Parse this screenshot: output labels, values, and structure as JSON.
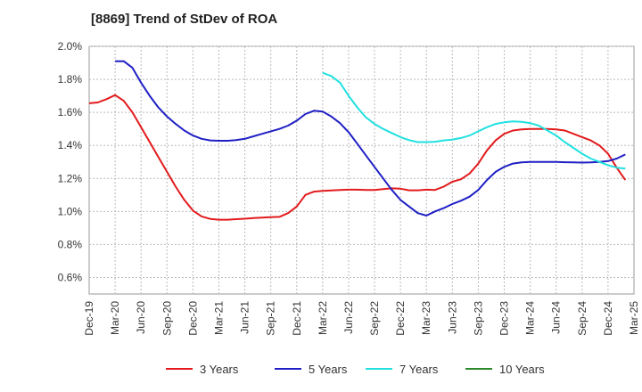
{
  "chart_data": {
    "type": "line",
    "title": "[8869]  Trend of StDev of ROA",
    "xlabel": "",
    "ylabel": "",
    "ylim": [
      0.5,
      2.0
    ],
    "y_ticks": [
      0.6,
      0.8,
      1.0,
      1.2,
      1.4,
      1.6,
      1.8,
      2.0
    ],
    "y_tick_labels": [
      "0.6%",
      "0.8%",
      "1.0%",
      "1.2%",
      "1.4%",
      "1.6%",
      "1.8%",
      "2.0%"
    ],
    "x_tick_labels": [
      "Dec-19",
      "Mar-20",
      "Jun-20",
      "Sep-20",
      "Dec-20",
      "Mar-21",
      "Jun-21",
      "Sep-21",
      "Dec-21",
      "Mar-22",
      "Jun-22",
      "Sep-22",
      "Dec-22",
      "Mar-23",
      "Jun-23",
      "Sep-23",
      "Dec-23",
      "Mar-24",
      "Jun-24",
      "Sep-24",
      "Dec-24",
      "Mar-25"
    ],
    "grid": true,
    "legend_position": "bottom",
    "series": [
      {
        "name": "3 Years",
        "color": "#e31a1c",
        "values": [
          1.655,
          1.66,
          1.68,
          1.705,
          1.67,
          1.6,
          1.51,
          1.42,
          1.33,
          1.24,
          1.15,
          1.07,
          1.005,
          0.97,
          0.955,
          0.95,
          0.95,
          0.953,
          0.956,
          0.96,
          0.963,
          0.965,
          0.967,
          0.99,
          1.03,
          1.1,
          1.12,
          1.125,
          1.127,
          1.13,
          1.132,
          1.132,
          1.13,
          1.13,
          1.135,
          1.14,
          1.138,
          1.128,
          1.128,
          1.132,
          1.13,
          1.15,
          1.18,
          1.195,
          1.23,
          1.29,
          1.37,
          1.43,
          1.47,
          1.49,
          1.497,
          1.5,
          1.5,
          1.5,
          1.497,
          1.49,
          1.47,
          1.45,
          1.43,
          1.4,
          1.35,
          1.265,
          1.19
        ]
      },
      {
        "name": "5 Years",
        "color": "#1f1fc4",
        "values": [
          null,
          null,
          null,
          1.91,
          1.91,
          1.87,
          1.78,
          1.7,
          1.63,
          1.575,
          1.53,
          1.49,
          1.46,
          1.44,
          1.43,
          1.428,
          1.428,
          1.432,
          1.44,
          1.455,
          1.47,
          1.485,
          1.5,
          1.52,
          1.55,
          1.59,
          1.61,
          1.605,
          1.575,
          1.535,
          1.48,
          1.41,
          1.34,
          1.27,
          1.2,
          1.13,
          1.07,
          1.03,
          0.99,
          0.975,
          1.0,
          1.02,
          1.045,
          1.065,
          1.09,
          1.13,
          1.19,
          1.24,
          1.27,
          1.29,
          1.297,
          1.3,
          1.3,
          1.3,
          1.3,
          1.298,
          1.297,
          1.296,
          1.297,
          1.3,
          1.305,
          1.32,
          1.345
        ]
      },
      {
        "name": "7 Years",
        "color": "#22e0e0",
        "values": [
          null,
          null,
          null,
          null,
          null,
          null,
          null,
          null,
          null,
          null,
          null,
          null,
          null,
          null,
          null,
          null,
          null,
          null,
          null,
          null,
          null,
          null,
          null,
          null,
          null,
          null,
          null,
          1.84,
          1.82,
          1.78,
          1.7,
          1.63,
          1.57,
          1.53,
          1.5,
          1.475,
          1.45,
          1.432,
          1.42,
          1.42,
          1.422,
          1.43,
          1.435,
          1.445,
          1.46,
          1.485,
          1.51,
          1.53,
          1.54,
          1.545,
          1.543,
          1.535,
          1.52,
          1.49,
          1.46,
          1.42,
          1.385,
          1.35,
          1.32,
          1.3,
          1.28,
          1.265,
          1.26
        ]
      },
      {
        "name": "10 Years",
        "color": "#2a8a2a",
        "values": []
      }
    ]
  }
}
